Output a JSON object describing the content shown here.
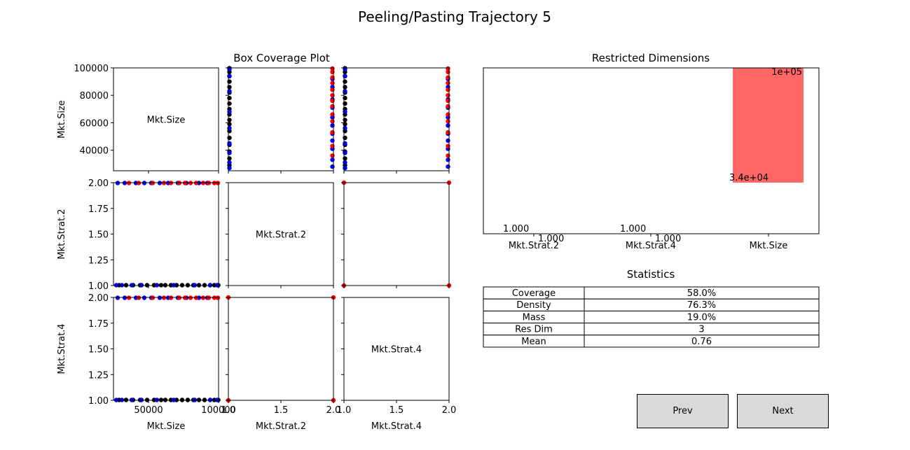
{
  "figure_title": "Peeling/Pasting Trajectory 5",
  "chart_data": [
    {
      "type": "scatter",
      "title": "Box Coverage Plot",
      "variables": [
        "Mkt.Size",
        "Mkt.Strat.2",
        "Mkt.Strat.4"
      ],
      "ranges": {
        "Mkt.Size": [
          25000,
          100000
        ],
        "Mkt.Strat.2": [
          1.0,
          2.0
        ],
        "Mkt.Strat.4": [
          1.0,
          2.0
        ]
      },
      "ticks": {
        "Mkt.Size": {
          "values": [
            40000,
            60000,
            80000,
            100000
          ],
          "labels": [
            "40000",
            "60000",
            "80000",
            "100000"
          ]
        },
        "Mkt.Size_x": {
          "values": [
            50000,
            100000
          ],
          "labels": [
            "50000",
            "100000"
          ]
        },
        "Mkt.Strat.2": {
          "values": [
            1.0,
            1.25,
            1.5,
            1.75,
            2.0
          ],
          "labels": [
            "1.00",
            "1.25",
            "1.50",
            "1.75",
            "2.00"
          ]
        },
        "Mkt.Strat.2_x": {
          "values": [
            1.0,
            1.5,
            2.0
          ],
          "labels": [
            "1.0",
            "1.5",
            "2.0"
          ]
        },
        "Mkt.Strat.4_x": {
          "values": [
            1.0,
            1.5,
            2.0
          ],
          "labels": [
            "1.0",
            "1.5",
            "2.0"
          ]
        }
      },
      "series": [
        {
          "color": "#0000ff"
        },
        {
          "color": "#ff0000"
        },
        {
          "color": "#000000"
        }
      ],
      "points_by_pair": {
        "size_vs_strat": {
          "blue": {
            "strat": [
              1,
              1,
              1,
              1,
              2,
              2,
              2,
              2,
              2,
              2,
              1,
              1,
              2,
              2,
              2,
              1,
              1,
              2,
              2,
              1
            ],
            "size": [
              27000,
              31000,
              38000,
              45000,
              28000,
              33000,
              41000,
              47000,
              52000,
              58000,
              56000,
              68000,
              64000,
              71000,
              77000,
              83000,
              94000,
              86000,
              92000,
              99000
            ]
          },
          "red": {
            "strat": [
              2,
              2,
              2,
              2,
              2,
              2,
              2,
              2,
              2,
              2,
              2,
              2,
              2
            ],
            "size": [
              36000,
              43000,
              53000,
              61000,
              66000,
              72000,
              76000,
              80000,
              84000,
              89000,
              93000,
              97000,
              99500
            ]
          },
          "black": {
            "strat": [
              1,
              1,
              1,
              1,
              1,
              1,
              1,
              1,
              1,
              1,
              1,
              1,
              1,
              1,
              1,
              1,
              1,
              1
            ],
            "size": [
              29000,
              34000,
              39000,
              44000,
              49000,
              54000,
              59000,
              62000,
              66000,
              70000,
              74000,
              78000,
              82000,
              86000,
              90000,
              94000,
              97000,
              99800
            ]
          }
        },
        "strat_vs_strat": {
          "red": [
            [
              1,
              1
            ],
            [
              1,
              2
            ],
            [
              2,
              1
            ],
            [
              2,
              2
            ]
          ]
        }
      }
    },
    {
      "type": "bar",
      "title": "Restricted Dimensions",
      "categories": [
        "Mkt.Strat.2",
        "Mkt.Strat.4",
        "Mkt.Size"
      ],
      "bars": [
        {
          "category": "Mkt.Strat.2",
          "low": 1.0,
          "high": 1.0,
          "low_label": "1.000",
          "high_label": "1.000"
        },
        {
          "category": "Mkt.Strat.4",
          "low": 1.0,
          "high": 1.0,
          "low_label": "1.000",
          "high_label": "1.000"
        },
        {
          "category": "Mkt.Size",
          "low": 34000,
          "high": 100000,
          "low_label": "3.4e+04",
          "high_label": "1e+05"
        }
      ],
      "bar_color": "#ff6666"
    },
    {
      "type": "table",
      "title": "Statistics",
      "rows": [
        {
          "label": "Coverage",
          "value": "58.0%"
        },
        {
          "label": "Density",
          "value": "76.3%"
        },
        {
          "label": "Mass",
          "value": "19.0%"
        },
        {
          "label": "Res Dim",
          "value": "3"
        },
        {
          "label": "Mean",
          "value": "0.76"
        }
      ]
    }
  ],
  "buttons": {
    "prev": "Prev",
    "next": "Next"
  }
}
